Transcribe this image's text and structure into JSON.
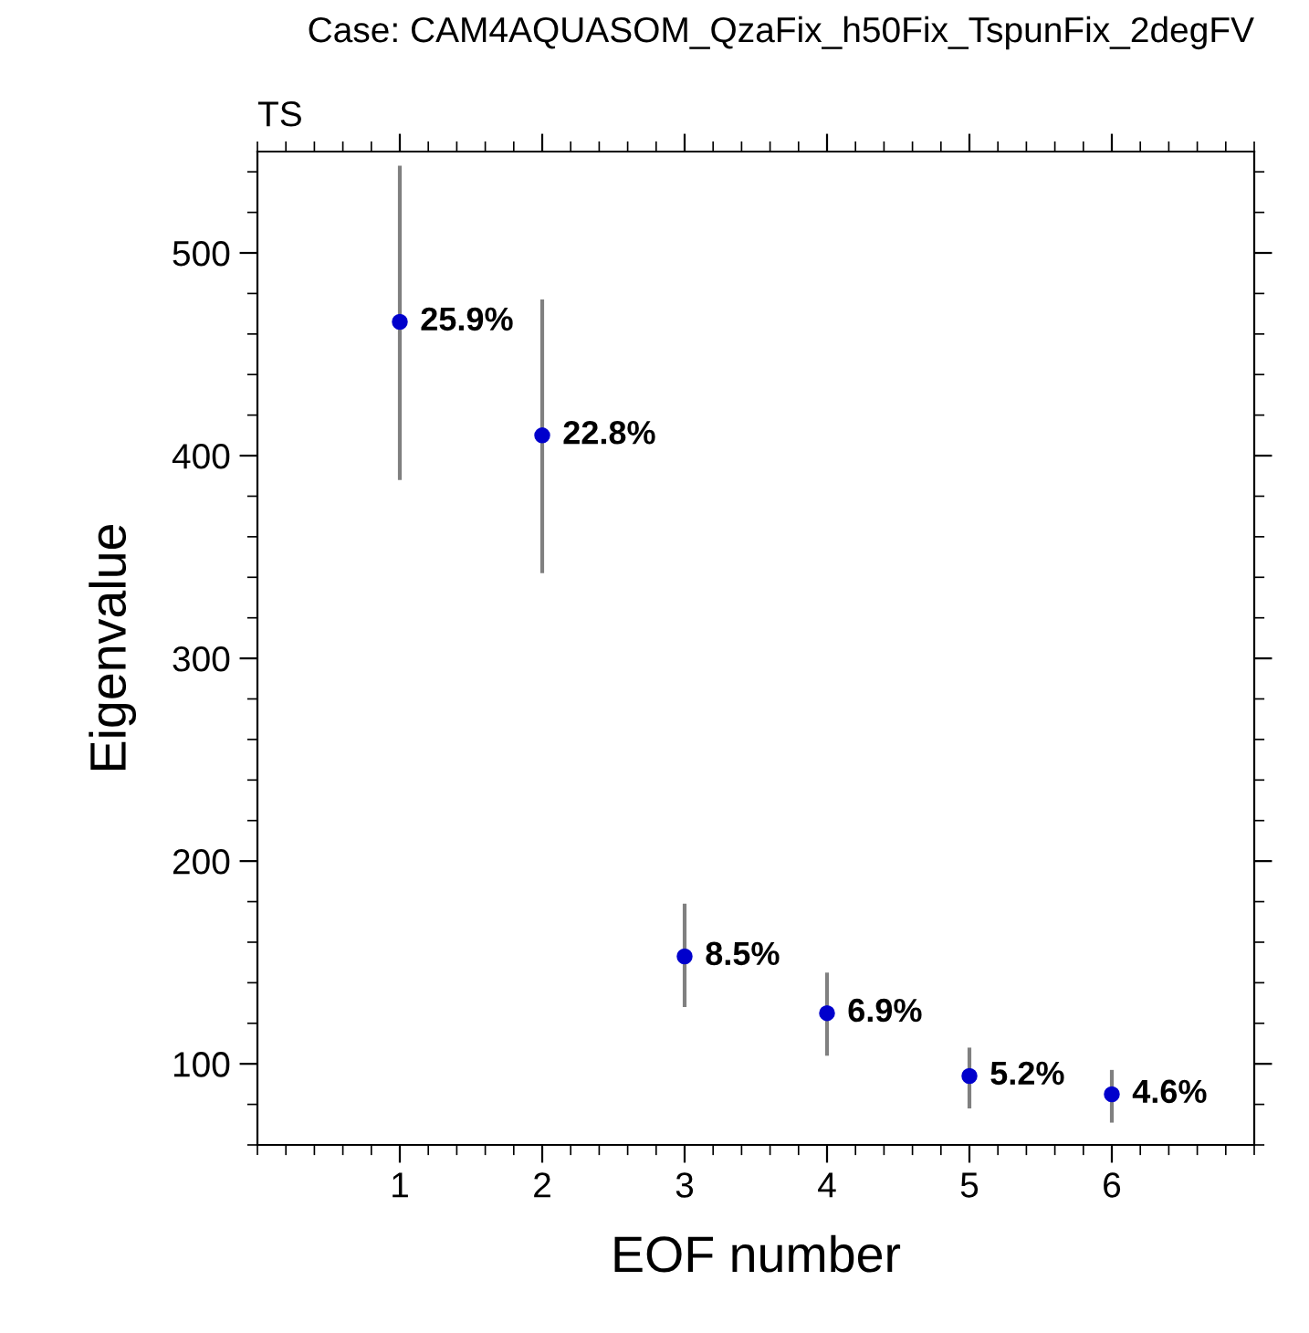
{
  "chart_data": {
    "type": "scatter",
    "title": "Case: CAM4AQUASOM_QzaFix_h50Fix_TspunFix_2degFV",
    "subtitle": "TS",
    "xlabel": "EOF number",
    "ylabel": "Eigenvalue",
    "x": [
      1,
      2,
      3,
      4,
      5,
      6
    ],
    "series": [
      {
        "color": "#0000cc",
        "values": [
          466,
          410,
          153,
          125,
          94,
          85
        ],
        "errors": [
          [
            388,
            543
          ],
          [
            342,
            477
          ],
          [
            128,
            179
          ],
          [
            104,
            145
          ],
          [
            78,
            108
          ],
          [
            71,
            97
          ]
        ]
      }
    ],
    "annotations": [
      {
        "text": "25.9%",
        "x": 1,
        "y": 466
      },
      {
        "text": "22.8%",
        "x": 2,
        "y": 410
      },
      {
        "text": "8.5%",
        "x": 3,
        "y": 153
      },
      {
        "text": "6.9%",
        "x": 4,
        "y": 125
      },
      {
        "text": "5.2%",
        "x": 5,
        "y": 94
      },
      {
        "text": "4.6%",
        "x": 6,
        "y": 85
      }
    ],
    "marker": "circle",
    "xlim": [
      0,
      7
    ],
    "ylim": [
      60,
      550
    ],
    "xticks": [
      1,
      2,
      3,
      4,
      5,
      6
    ],
    "yticks": [
      100,
      200,
      300,
      400,
      500
    ],
    "grid": false,
    "legend": false
  }
}
